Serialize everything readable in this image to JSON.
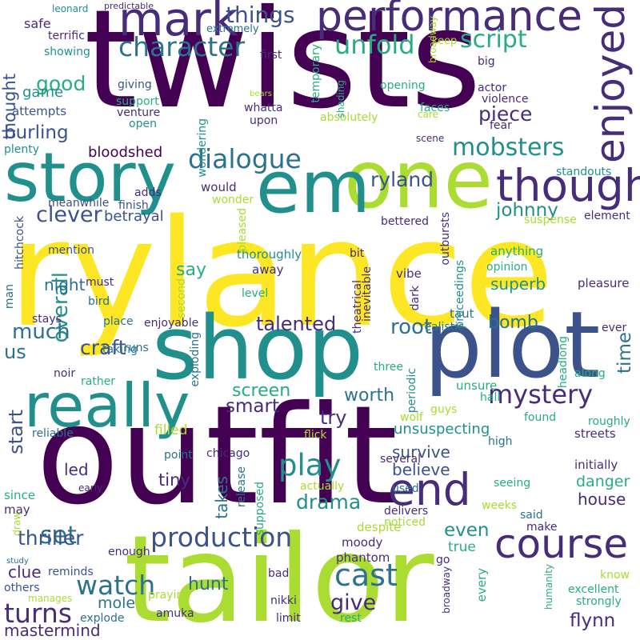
{
  "palette": {
    "background": "#ffffff",
    "dark_purple": "#440154",
    "purple": "#472c7a",
    "indigo": "#3b528b",
    "blue": "#2c728e",
    "teal": "#21908d",
    "green": "#27ad81",
    "light_green": "#5cc863",
    "lime": "#aadc32",
    "yellow": "#fde725"
  },
  "words": [
    "twists",
    "rylance",
    "outfit",
    "tailor",
    "shop",
    "plot",
    "one",
    "story",
    "em",
    "really",
    "performance",
    "enjoyed",
    "mark",
    "though",
    "course",
    "end",
    "character",
    "dialogue",
    "mobsters",
    "production",
    "script",
    "unfold",
    "things",
    "ryland",
    "clever",
    "cast",
    "watch",
    "play",
    "mystery",
    "turns",
    "good",
    "thought",
    "game",
    "talented",
    "craft",
    "smart",
    "screen",
    "worth",
    "root",
    "bomb",
    "time",
    "overall",
    "much",
    "us",
    "start",
    "set",
    "drama",
    "thriller",
    "give",
    "hunt",
    "flynn",
    "burling",
    "bloodshed",
    "betrayal",
    "say",
    "night",
    "superb",
    "piece",
    "johnny",
    "anything",
    "try",
    "tiny",
    "takes",
    "even",
    "survive",
    "believe",
    "danger",
    "house",
    "filled",
    "led",
    "clue",
    "mole",
    "mastermind",
    "explode",
    "amuka",
    "nikki",
    "limit",
    "rest",
    "broadway",
    "every",
    "humanity",
    "excellent",
    "strongly",
    "know",
    "bad",
    "others",
    "manages",
    "praying",
    "reminds",
    "enough",
    "study",
    "since",
    "may",
    "draw",
    "early",
    "reliable",
    "chicago",
    "flick",
    "point",
    "release",
    "supposed",
    "actually",
    "despite",
    "delivers",
    "noticed",
    "moody",
    "phantom",
    "go",
    "make",
    "true",
    "said",
    "weeks",
    "seeing",
    "several",
    "used",
    "unsuspecting",
    "wolf",
    "guys",
    "high",
    "initially",
    "streets",
    "roughly",
    "found",
    "hall",
    "unsure",
    "periodic",
    "three",
    "headlong",
    "along",
    "ever",
    "taut",
    "realistic",
    "dark",
    "inevitable",
    "theatrical",
    "proceedings",
    "pleasure",
    "opinion",
    "vibe",
    "suspense",
    "element",
    "standouts",
    "scene",
    "bit",
    "bettered",
    "outbursts",
    "mention",
    "man",
    "hitchcock",
    "must",
    "bird",
    "place",
    "stays",
    "noir",
    "rather",
    "taking",
    "runs",
    "exploding",
    "enjoyable",
    "second",
    "level",
    "away",
    "thoroughly",
    "pleased",
    "would",
    "wonder",
    "wondering",
    "adds",
    "finish",
    "meanwhile",
    "plenty",
    "open",
    "venture",
    "upon",
    "whatta",
    "support",
    "giving",
    "attempts",
    "faces",
    "fear",
    "care",
    "actor",
    "violence",
    "absolutely",
    "shading",
    "temporary",
    "opening",
    "big",
    "bears",
    "keep",
    "broadway",
    "first",
    "showing",
    "terrific",
    "safe",
    "extremely",
    "leonard",
    "predictable"
  ]
}
